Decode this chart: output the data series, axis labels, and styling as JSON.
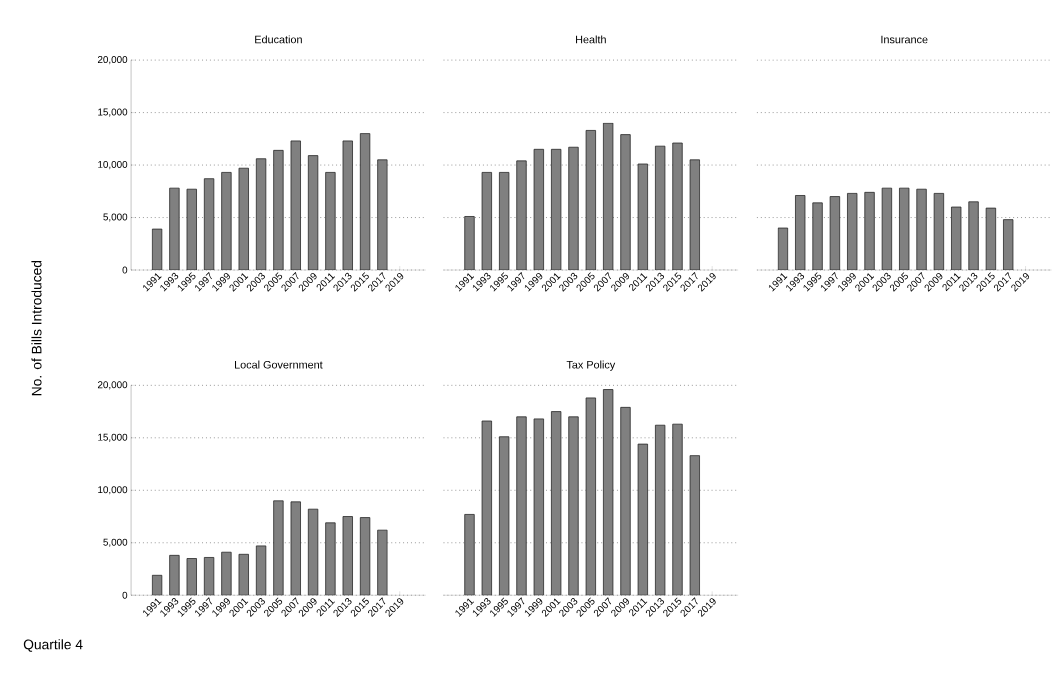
{
  "chart_data": [
    {
      "type": "bar",
      "title": "Education",
      "ylabel": "No. of Bills Introduced",
      "x": [
        1991,
        1993,
        1995,
        1997,
        1999,
        2001,
        2003,
        2005,
        2007,
        2009,
        2011,
        2013,
        2015,
        2017
      ],
      "values": [
        3900,
        7800,
        7700,
        8700,
        9300,
        9700,
        10600,
        11400,
        12300,
        10900,
        9300,
        12300,
        13000,
        10500
      ],
      "color": "#808080",
      "xlim": [
        1988,
        2022
      ],
      "ylim": [
        0,
        20000
      ],
      "xticks": [
        1991,
        1993,
        1995,
        1997,
        1999,
        2001,
        2003,
        2005,
        2007,
        2009,
        2011,
        2013,
        2015,
        2017,
        2019
      ],
      "yticks": [
        {
          "value": 0,
          "label": "0"
        },
        {
          "value": 5000,
          "label": "5,000"
        },
        {
          "value": 10000,
          "label": "10,000"
        },
        {
          "value": 15000,
          "label": "15,000"
        },
        {
          "value": 20000,
          "label": "20,000"
        }
      ],
      "grid": "y"
    },
    {
      "type": "bar",
      "title": "Health",
      "x": [
        1991,
        1993,
        1995,
        1997,
        1999,
        2001,
        2003,
        2005,
        2007,
        2009,
        2011,
        2013,
        2015,
        2017
      ],
      "values": [
        5100,
        9300,
        9300,
        10400,
        11500,
        11500,
        11700,
        13300,
        14000,
        12900,
        10100,
        11800,
        12100,
        10500
      ],
      "color": "#808080",
      "xlim": [
        1988,
        2022
      ],
      "ylim": [
        0,
        20000
      ],
      "xticks": [
        1991,
        1993,
        1995,
        1997,
        1999,
        2001,
        2003,
        2005,
        2007,
        2009,
        2011,
        2013,
        2015,
        2017,
        2019
      ],
      "yticks": [
        0,
        5000,
        10000,
        15000,
        20000
      ],
      "grid": "y",
      "tick_labels": "x"
    },
    {
      "type": "bar",
      "title": "Insurance",
      "x": [
        1991,
        1993,
        1995,
        1997,
        1999,
        2001,
        2003,
        2005,
        2007,
        2009,
        2011,
        2013,
        2015,
        2017
      ],
      "values": [
        4000,
        7100,
        6400,
        7000,
        7300,
        7400,
        7800,
        7800,
        7700,
        7300,
        6000,
        6500,
        5900,
        4800
      ],
      "color": "#808080",
      "xlim": [
        1988,
        2022
      ],
      "ylim": [
        0,
        20000
      ],
      "xticks": [
        1991,
        1993,
        1995,
        1997,
        1999,
        2001,
        2003,
        2005,
        2007,
        2009,
        2011,
        2013,
        2015,
        2017,
        2019
      ],
      "yticks": [
        0,
        5000,
        10000,
        15000,
        20000
      ],
      "grid": "y",
      "tick_labels": "x"
    },
    {
      "type": "bar",
      "title": "Local Government",
      "annotations": [
        "Quartile 4"
      ],
      "x": [
        1991,
        1993,
        1995,
        1997,
        1999,
        2001,
        2003,
        2005,
        2007,
        2009,
        2011,
        2013,
        2015,
        2017
      ],
      "values": [
        1900,
        3800,
        3500,
        3600,
        4100,
        3900,
        4700,
        9000,
        8900,
        8200,
        6900,
        7500,
        7400,
        6200
      ],
      "color": "#808080",
      "xlim": [
        1988,
        2022
      ],
      "ylim": [
        0,
        20000
      ],
      "xticks": [
        1991,
        1993,
        1995,
        1997,
        1999,
        2001,
        2003,
        2005,
        2007,
        2009,
        2011,
        2013,
        2015,
        2017,
        2019
      ],
      "yticks": [
        {
          "value": 0,
          "label": "0"
        },
        {
          "value": 5000,
          "label": "5,000"
        },
        {
          "value": 10000,
          "label": "10,000"
        },
        {
          "value": 15000,
          "label": "15,000"
        },
        {
          "value": 20000,
          "label": "20,000"
        }
      ],
      "grid": "y"
    },
    {
      "type": "bar",
      "title": "Tax Policy",
      "x": [
        1991,
        1993,
        1995,
        1997,
        1999,
        2001,
        2003,
        2005,
        2007,
        2009,
        2011,
        2013,
        2015,
        2017
      ],
      "values": [
        7700,
        16600,
        15100,
        17000,
        16800,
        17500,
        17000,
        18800,
        19600,
        17900,
        14400,
        16200,
        16300,
        13300
      ],
      "color": "#808080",
      "xlim": [
        1988,
        2022
      ],
      "ylim": [
        0,
        20000
      ],
      "xticks": [
        1991,
        1993,
        1995,
        1997,
        1999,
        2001,
        2003,
        2005,
        2007,
        2009,
        2011,
        2013,
        2015,
        2017,
        2019
      ],
      "yticks": [
        0,
        5000,
        10000,
        15000,
        20000
      ],
      "grid": "y",
      "tick_labels": "x"
    }
  ]
}
